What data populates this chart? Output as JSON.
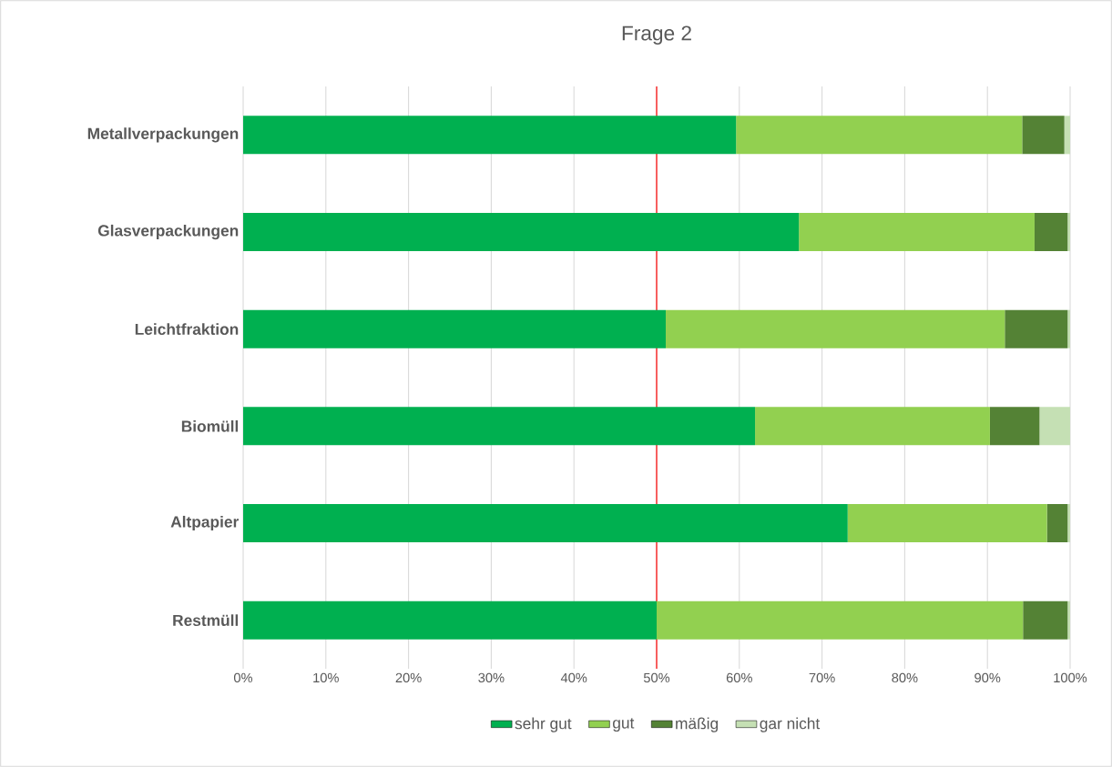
{
  "chart_data": {
    "type": "bar",
    "title": "Frage 2",
    "orientation": "horizontal",
    "stacked": true,
    "categories": [
      "Metallverpackungen",
      "Glasverpackungen",
      "Leichtfraktion",
      "Biomüll",
      "Altpapier",
      "Restmüll"
    ],
    "series": [
      {
        "name": "sehr gut",
        "color": "#00b050",
        "values": [
          59.6,
          67.2,
          51.1,
          61.9,
          73.1,
          50.0
        ]
      },
      {
        "name": "gut",
        "color": "#92d050",
        "values": [
          34.6,
          28.5,
          41.0,
          28.4,
          24.1,
          44.3
        ]
      },
      {
        "name": "mäßig",
        "color": "#548235",
        "values": [
          5.1,
          4.0,
          7.6,
          6.0,
          2.5,
          5.4
        ]
      },
      {
        "name": "gar nicht",
        "color": "#c5e0b4",
        "values": [
          0.7,
          0.3,
          0.3,
          3.7,
          0.3,
          0.3
        ]
      }
    ],
    "xlim": [
      0,
      100
    ],
    "xticks": [
      {
        "value": 0,
        "label": "0%"
      },
      {
        "value": 10,
        "label": "10%"
      },
      {
        "value": 20,
        "label": "20%"
      },
      {
        "value": 30,
        "label": "30%"
      },
      {
        "value": 40,
        "label": "40%"
      },
      {
        "value": 50,
        "label": "50%"
      },
      {
        "value": 60,
        "label": "60%"
      },
      {
        "value": 70,
        "label": "70%"
      },
      {
        "value": 80,
        "label": "80%"
      },
      {
        "value": 90,
        "label": "90%"
      },
      {
        "value": 100,
        "label": "100%"
      }
    ],
    "grid": "x",
    "legend": "bottom",
    "ref_lines": [
      {
        "axis": "x",
        "value": 50,
        "color": "#ff0000"
      }
    ]
  }
}
